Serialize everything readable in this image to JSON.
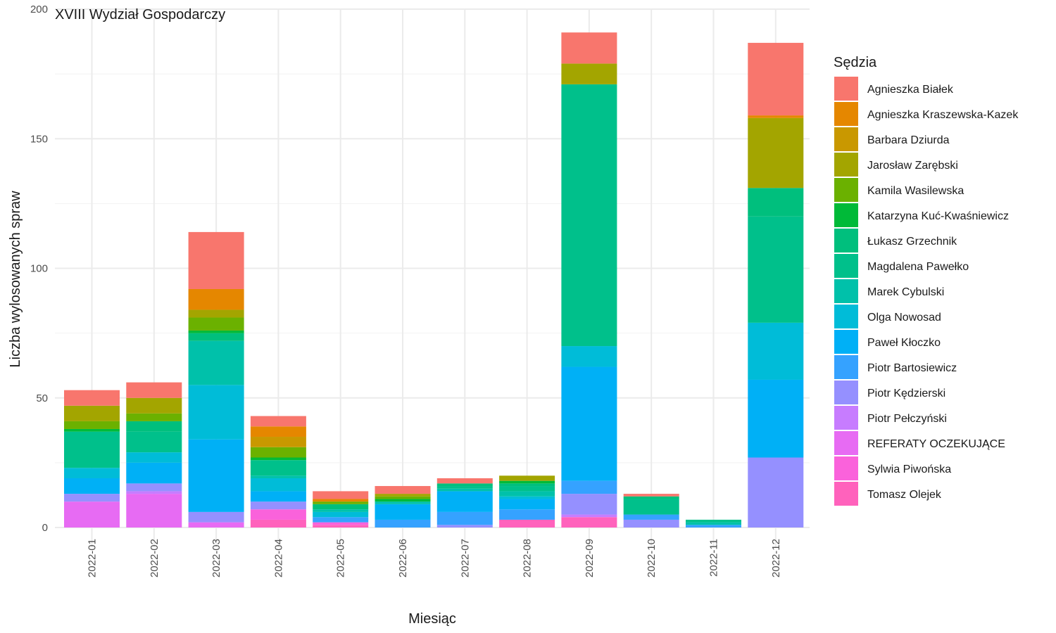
{
  "chart_data": {
    "type": "bar",
    "stacked": true,
    "title": "XVIII Wydział Gospodarczy",
    "xlabel": "Miesiąc",
    "ylabel": "Liczba wylosowanych spraw",
    "ylim": [
      0,
      200
    ],
    "yticks": [
      0,
      50,
      100,
      150,
      200
    ],
    "grid": true,
    "legend": {
      "title": "Sędzia",
      "position": "right"
    },
    "categories": [
      "2022-01",
      "2022-02",
      "2022-03",
      "2022-04",
      "2022-05",
      "2022-06",
      "2022-07",
      "2022-08",
      "2022-09",
      "2022-10",
      "2022-11",
      "2022-12"
    ],
    "series": [
      {
        "name": "Agnieszka Białek",
        "color": "#F8766D",
        "values": [
          6,
          6,
          22,
          4,
          3,
          3,
          2,
          0,
          12,
          1,
          0,
          28
        ]
      },
      {
        "name": "Agnieszka Kraszewska-Kazek",
        "color": "#E58700",
        "values": [
          0,
          0,
          8,
          4,
          1,
          0,
          0,
          0,
          0,
          0,
          0,
          1
        ]
      },
      {
        "name": "Barbara Dziurda",
        "color": "#C99800",
        "values": [
          0,
          0,
          0,
          4,
          0,
          0,
          0,
          0,
          0,
          0,
          0,
          0
        ]
      },
      {
        "name": "Jarosław Zarębski",
        "color": "#A3A500",
        "values": [
          6,
          6,
          3,
          0,
          0,
          1,
          0,
          2,
          8,
          0,
          0,
          27
        ]
      },
      {
        "name": "Kamila Wasilewska",
        "color": "#6BB100",
        "values": [
          3,
          3,
          5,
          4,
          1,
          1,
          0,
          0,
          0,
          0,
          0,
          0
        ]
      },
      {
        "name": "Katarzyna Kuć-Kwaśniewicz",
        "color": "#00BA38",
        "values": [
          1,
          0,
          1,
          1,
          0,
          1,
          0,
          1,
          0,
          0,
          0,
          0
        ]
      },
      {
        "name": "Łukasz Grzechnik",
        "color": "#00BF7D",
        "values": [
          0,
          4,
          3,
          0,
          2,
          0,
          1,
          1,
          0,
          1,
          0,
          11
        ]
      },
      {
        "name": "Magdalena Pawełko",
        "color": "#00C08B",
        "values": [
          14,
          8,
          0,
          6,
          0,
          0,
          1,
          2,
          101,
          6,
          1,
          41
        ]
      },
      {
        "name": "Marek Cybulski",
        "color": "#00C1AA",
        "values": [
          0,
          0,
          17,
          1,
          1,
          1,
          1,
          2,
          0,
          0,
          1,
          0
        ]
      },
      {
        "name": "Olga Nowosad",
        "color": "#00BCD8",
        "values": [
          4,
          4,
          21,
          5,
          2,
          0,
          0,
          1,
          8,
          0,
          0,
          22
        ]
      },
      {
        "name": "Paweł Kłoczko",
        "color": "#00B0F6",
        "values": [
          6,
          8,
          28,
          4,
          0,
          6,
          8,
          4,
          44,
          0,
          0,
          30
        ]
      },
      {
        "name": "Piotr Bartosiewicz",
        "color": "#35A2FF",
        "values": [
          0,
          0,
          0,
          0,
          2,
          3,
          5,
          4,
          5,
          2,
          1,
          0
        ]
      },
      {
        "name": "Piotr Kędzierski",
        "color": "#9590FF",
        "values": [
          3,
          3,
          4,
          3,
          0,
          0,
          1,
          0,
          8,
          3,
          0,
          27
        ]
      },
      {
        "name": "Piotr Pełczyński",
        "color": "#C77CFF",
        "values": [
          0,
          1,
          0,
          0,
          0,
          0,
          0,
          0,
          1,
          0,
          0,
          0
        ]
      },
      {
        "name": "REFERATY OCZEKUJĄCE",
        "color": "#E76BF3",
        "values": [
          10,
          13,
          2,
          0,
          0,
          0,
          0,
          0,
          0,
          0,
          0,
          0
        ]
      },
      {
        "name": "Sylwia Piwońska",
        "color": "#FA62DB",
        "values": [
          0,
          0,
          0,
          4,
          1,
          0,
          0,
          0,
          0,
          0,
          0,
          0
        ]
      },
      {
        "name": "Tomasz Olejek",
        "color": "#FF62BC",
        "values": [
          0,
          0,
          0,
          3,
          1,
          0,
          0,
          3,
          4,
          0,
          0,
          0
        ]
      }
    ]
  }
}
